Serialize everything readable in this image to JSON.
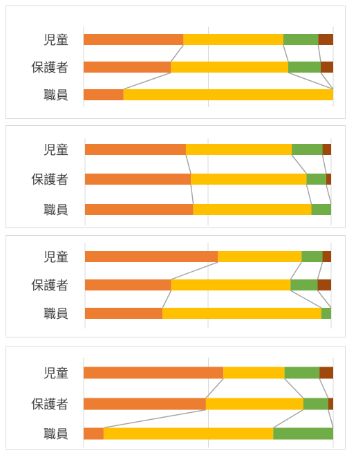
{
  "colors": {
    "segments": [
      "#ED7D31",
      "#FFC000",
      "#70AD47",
      "#9E480E"
    ],
    "grid": "#d9d9d9",
    "connector": "#a6a6a6",
    "label": "#404040"
  },
  "chart_data": [
    {
      "type": "bar",
      "orientation": "horizontal",
      "stacked": "percent",
      "series_lines": true,
      "grid": true,
      "xlim": [
        0,
        100
      ],
      "categories": [
        "児童",
        "保護者",
        "職員"
      ],
      "segments": [
        [
          40,
          40,
          14,
          6
        ],
        [
          35,
          47,
          13,
          5
        ],
        [
          16,
          84,
          0,
          0
        ]
      ]
    },
    {
      "type": "bar",
      "orientation": "horizontal",
      "stacked": "percent",
      "series_lines": true,
      "grid": true,
      "xlim": [
        0,
        100
      ],
      "categories": [
        "児童",
        "保護者",
        "職員"
      ],
      "segments": [
        [
          41,
          43,
          12.5,
          3.5
        ],
        [
          43,
          47,
          8,
          2
        ],
        [
          44,
          48,
          8,
          0
        ]
      ]
    },
    {
      "type": "bar",
      "orientation": "horizontal",
      "stacked": "percent",
      "series_lines": true,
      "grid": true,
      "xlim": [
        0,
        100
      ],
      "categories": [
        "児童",
        "保護者",
        "職員"
      ],
      "segments": [
        [
          54,
          34,
          8.5,
          3.5
        ],
        [
          35,
          48.5,
          11,
          5.5
        ],
        [
          31.5,
          64.5,
          4,
          0
        ]
      ]
    },
    {
      "type": "bar",
      "orientation": "horizontal",
      "stacked": "percent",
      "series_lines": true,
      "grid": true,
      "xlim": [
        0,
        100
      ],
      "categories": [
        "児童",
        "保護者",
        "職員"
      ],
      "segments": [
        [
          56,
          24.5,
          14,
          5.5
        ],
        [
          49,
          39,
          10,
          2
        ],
        [
          8,
          68,
          24,
          0
        ]
      ]
    }
  ]
}
